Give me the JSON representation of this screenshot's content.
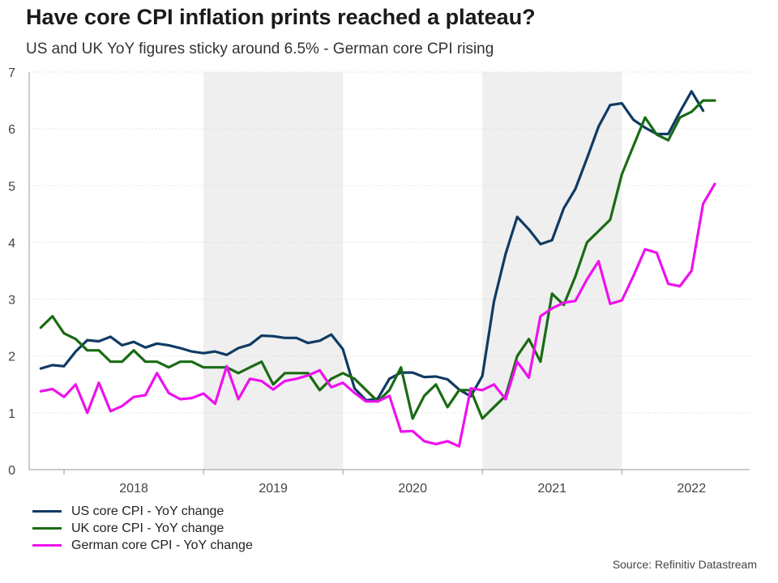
{
  "chart_data": {
    "type": "line",
    "title": "Have core CPI inflation prints reached a plateau?",
    "subtitle": "US and UK YoY figures sticky around 6.5% - German core CPI rising",
    "source": "Source: Refinitiv Datastream",
    "xlabel": "",
    "ylabel": "",
    "ylim": [
      0,
      7
    ],
    "yticks": [
      "0",
      "1",
      "2",
      "3",
      "4",
      "5",
      "6",
      "7"
    ],
    "xlim": [
      "2017-10",
      "2022-12"
    ],
    "year_labels": [
      "2018",
      "2019",
      "2020",
      "2021",
      "2022"
    ],
    "shaded_years": [
      "2019",
      "2021"
    ],
    "grid": "horizontal dotted",
    "legend_position": "bottom-left",
    "x_start": "2017-11",
    "x_step": "monthly",
    "series": [
      {
        "name": "US core CPI - YoY change",
        "color": "#0f3b63",
        "values": [
          1.78,
          1.84,
          1.82,
          2.08,
          2.28,
          2.26,
          2.34,
          2.19,
          2.25,
          2.15,
          2.22,
          2.19,
          2.14,
          2.08,
          2.05,
          2.08,
          2.02,
          2.14,
          2.2,
          2.36,
          2.35,
          2.32,
          2.32,
          2.23,
          2.27,
          2.38,
          2.12,
          1.43,
          1.22,
          1.25,
          1.6,
          1.71,
          1.71,
          1.63,
          1.64,
          1.59,
          1.41,
          1.29,
          1.65,
          2.96,
          3.8,
          4.45,
          4.23,
          3.97,
          4.04,
          4.6,
          4.94,
          5.48,
          6.04,
          6.42,
          6.45,
          6.16,
          6.02,
          5.91,
          5.91,
          6.3,
          6.66,
          6.32
        ]
      },
      {
        "name": "UK core CPI - YoY change",
        "color": "#1a6b14",
        "values": [
          2.5,
          2.7,
          2.4,
          2.3,
          2.1,
          2.1,
          1.9,
          1.9,
          2.1,
          1.9,
          1.9,
          1.8,
          1.9,
          1.9,
          1.8,
          1.8,
          1.8,
          1.7,
          1.8,
          1.9,
          1.5,
          1.7,
          1.7,
          1.7,
          1.4,
          1.6,
          1.7,
          1.6,
          1.4,
          1.2,
          1.4,
          1.8,
          0.9,
          1.3,
          1.5,
          1.1,
          1.4,
          1.4,
          0.9,
          1.1,
          1.3,
          2.0,
          2.3,
          1.9,
          3.1,
          2.9,
          3.4,
          4.0,
          4.2,
          4.4,
          5.2,
          5.7,
          6.2,
          5.9,
          5.8,
          6.2,
          6.3,
          6.5,
          6.5
        ]
      },
      {
        "name": "German core CPI - YoY change",
        "color": "#ee11ee",
        "values": [
          1.38,
          1.42,
          1.28,
          1.5,
          1.0,
          1.53,
          1.03,
          1.12,
          1.28,
          1.31,
          1.7,
          1.35,
          1.24,
          1.26,
          1.34,
          1.16,
          1.82,
          1.24,
          1.6,
          1.56,
          1.41,
          1.56,
          1.6,
          1.66,
          1.75,
          1.45,
          1.53,
          1.35,
          1.2,
          1.2,
          1.3,
          0.67,
          0.68,
          0.5,
          0.45,
          0.5,
          0.41,
          1.43,
          1.4,
          1.5,
          1.24,
          1.9,
          1.62,
          2.7,
          2.84,
          2.94,
          2.97,
          3.35,
          3.67,
          2.92,
          2.98,
          3.41,
          3.88,
          3.82,
          3.27,
          3.23,
          3.5,
          4.68,
          5.03
        ]
      }
    ]
  }
}
